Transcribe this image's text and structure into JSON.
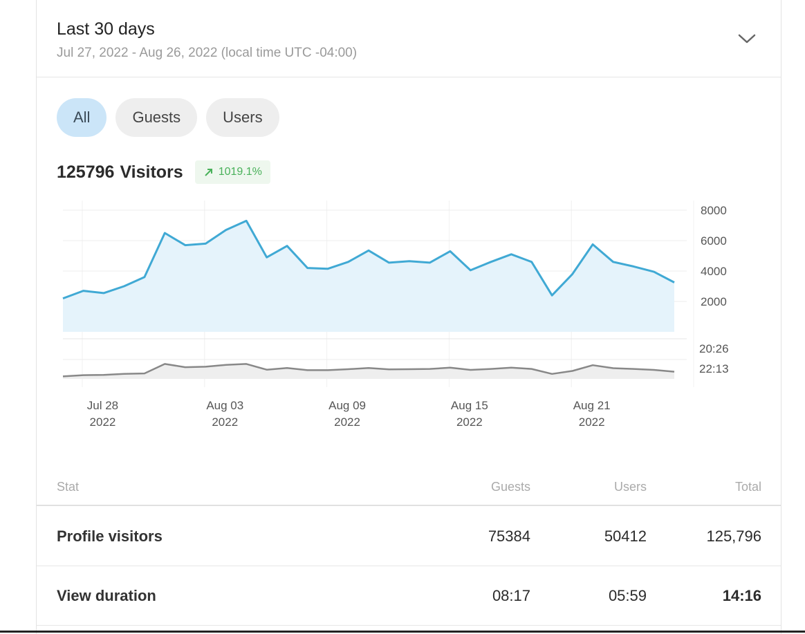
{
  "header": {
    "title": "Last 30 days",
    "range": "Jul 27, 2022 - Aug 26, 2022 (local time UTC -04:00)",
    "chevron_icon": "chevron-down-icon"
  },
  "segments": [
    {
      "label": "All",
      "active": true
    },
    {
      "label": "Guests",
      "active": false
    },
    {
      "label": "Users",
      "active": false
    }
  ],
  "summary": {
    "count": "125796",
    "label": "Visitors",
    "change": "1019.1%",
    "change_icon": "arrow-up-right-icon",
    "change_color": "#49b15a"
  },
  "chart_data": [
    {
      "type": "area",
      "series": [
        {
          "values": [
            2200,
            2700,
            2550,
            3000,
            3600,
            6500,
            5700,
            5800,
            6700,
            7300,
            4900,
            5650,
            4200,
            4150,
            4600,
            5350,
            4550,
            4650,
            4550,
            5300,
            4050,
            4600,
            5100,
            4600,
            2400,
            3800,
            5750,
            4600,
            4300,
            3950,
            3250
          ]
        }
      ],
      "y_ticks": [
        "8000",
        "6000",
        "4000",
        "2000"
      ],
      "ylim": [
        0,
        8000
      ],
      "color": "#40a9d4",
      "fill": "#e5f3fb"
    },
    {
      "type": "area",
      "series": [
        {
          "values": [
            10,
            15,
            16,
            20,
            22,
            60,
            47,
            49,
            56,
            60,
            37,
            44,
            35,
            35,
            39,
            44,
            38,
            39,
            40,
            45,
            36,
            40,
            45,
            40,
            20,
            32,
            55,
            43,
            40,
            36,
            29
          ]
        }
      ],
      "y_ticks": [
        "20:26",
        "22:13"
      ],
      "color": "#888888",
      "fill": "#eeeeee"
    }
  ],
  "x_ticks": [
    {
      "label": "Jul 28",
      "year": "2022"
    },
    {
      "label": "Aug 03",
      "year": "2022"
    },
    {
      "label": "Aug 09",
      "year": "2022"
    },
    {
      "label": "Aug 15",
      "year": "2022"
    },
    {
      "label": "Aug 21",
      "year": "2022"
    }
  ],
  "table": {
    "headers": {
      "stat": "Stat",
      "guests": "Guests",
      "users": "Users",
      "total": "Total"
    },
    "rows": [
      {
        "label": "Profile visitors",
        "guests": "75384",
        "users": "50412",
        "total": "125,796"
      },
      {
        "label": "View duration",
        "guests": "08:17",
        "users": "05:59",
        "total": "14:16"
      }
    ]
  }
}
